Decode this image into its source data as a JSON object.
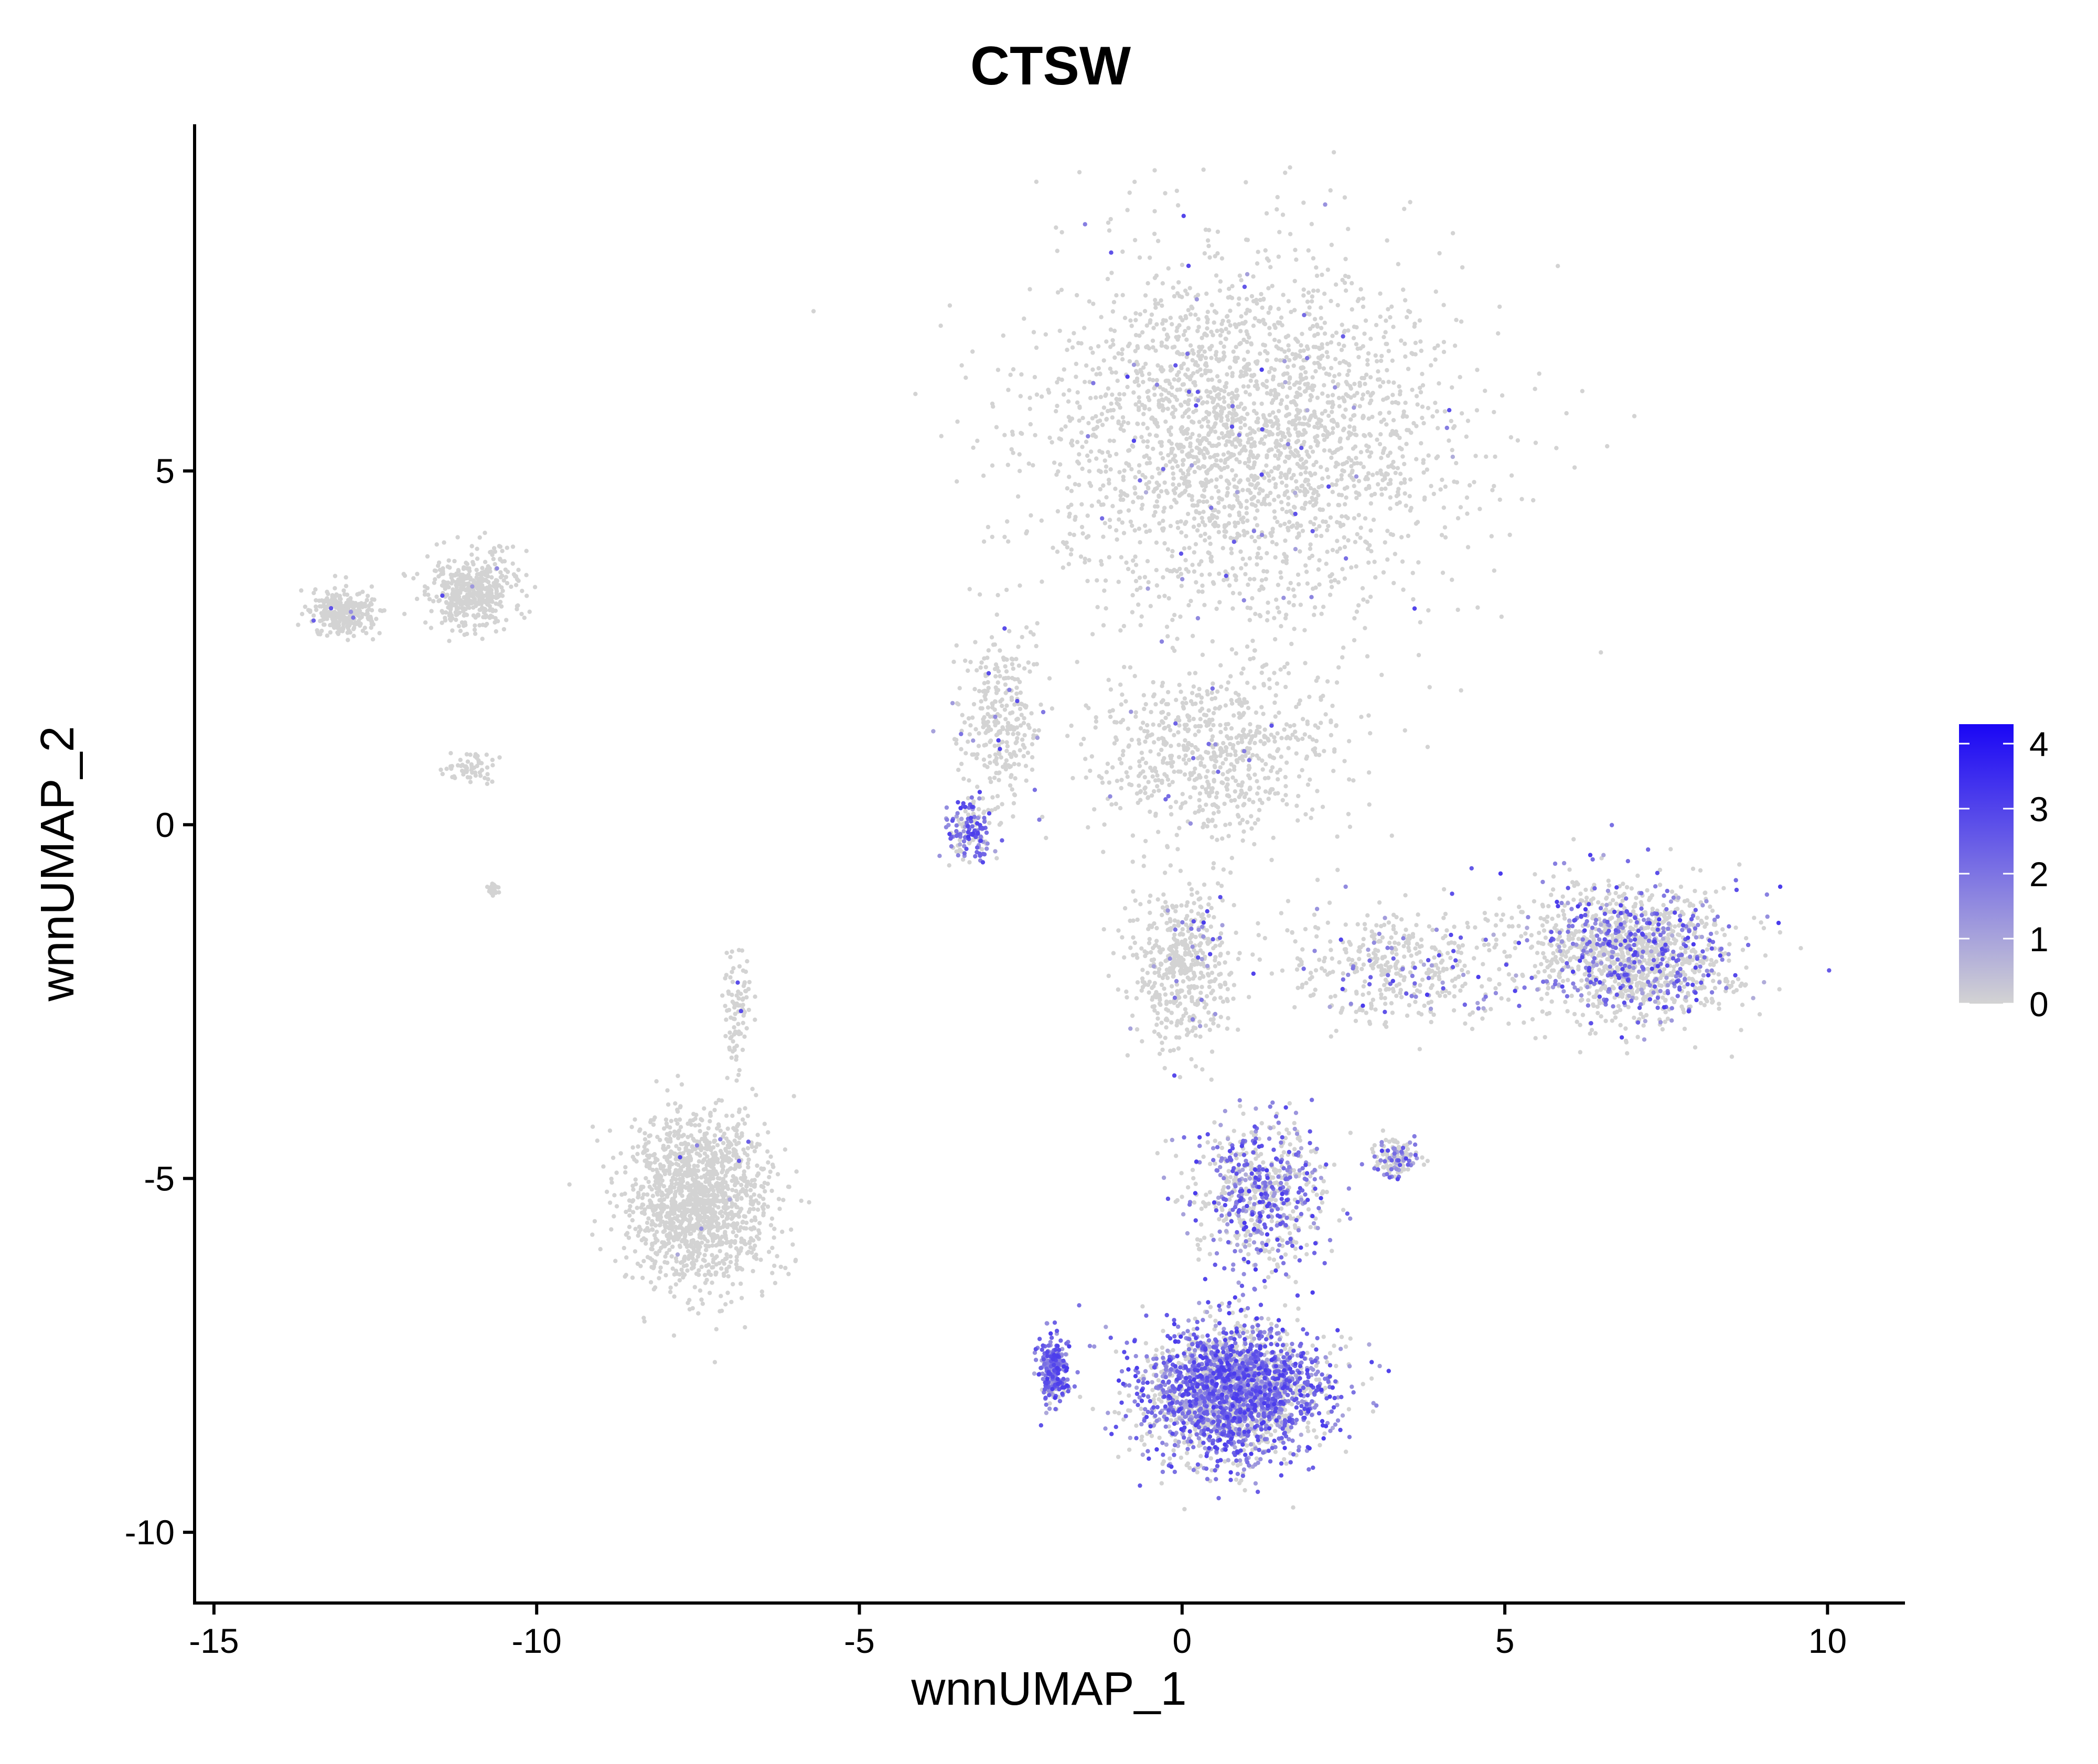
{
  "chart_data": {
    "type": "scatter",
    "title": "CTSW",
    "xlabel": "wnnUMAP_1",
    "ylabel": "wnnUMAP_2",
    "xlim": [
      -15.3,
      11.2
    ],
    "ylim": [
      -11.0,
      9.9
    ],
    "x_ticks": [
      -15,
      -10,
      -5,
      0,
      5,
      10
    ],
    "x_tick_labels": [
      "-15",
      "-10",
      "-5",
      "0",
      "5",
      "10"
    ],
    "y_ticks": [
      -10,
      -5,
      0,
      5
    ],
    "y_tick_labels": [
      "-10",
      "-5",
      "0",
      "5"
    ],
    "grid": false,
    "legend": {
      "position": "right",
      "type": "color-gradient",
      "min": 0,
      "max": 4.3,
      "ticks": [
        0,
        1,
        2,
        3,
        4
      ],
      "tick_labels": [
        "0",
        "1",
        "2",
        "3",
        "4"
      ],
      "low_color": "#d3d3d3",
      "high_color": "#1a06f5"
    },
    "color_low": "#d3d3d3",
    "color_high": "#1a06f5",
    "clusters": [
      {
        "label": "top",
        "cx": 1.0,
        "cy": 5.5,
        "sx": 3.2,
        "sy": 2.5,
        "n": 2600,
        "expr_prob": 0.03
      },
      {
        "label": "top-left-arm",
        "cx": -2.8,
        "cy": 1.5,
        "sx": 0.6,
        "sy": 1.2,
        "n": 300,
        "expr_prob": 0.05
      },
      {
        "label": "top-left-arm-lower",
        "cx": -3.3,
        "cy": -0.1,
        "sx": 0.35,
        "sy": 0.45,
        "n": 160,
        "expr_prob": 0.55
      },
      {
        "label": "middle-loop",
        "cx": 0.5,
        "cy": 1.0,
        "sx": 2.0,
        "sy": 1.2,
        "n": 700,
        "expr_prob": 0.02
      },
      {
        "label": "stem",
        "cx": 0.0,
        "cy": -2.0,
        "sx": 0.8,
        "sy": 1.2,
        "n": 500,
        "expr_prob": 0.06
      },
      {
        "label": "right-arm",
        "cx": 3.5,
        "cy": -2.0,
        "sx": 2.0,
        "sy": 0.8,
        "n": 450,
        "expr_prob": 0.12
      },
      {
        "label": "right-cluster",
        "cx": 7.0,
        "cy": -1.8,
        "sx": 1.6,
        "sy": 0.95,
        "n": 1400,
        "expr_prob": 0.3
      },
      {
        "label": "small-right",
        "cx": 3.3,
        "cy": -4.7,
        "sx": 0.35,
        "sy": 0.25,
        "n": 140,
        "expr_prob": 0.35
      },
      {
        "label": "bottom-stem",
        "cx": 1.2,
        "cy": -5.2,
        "sx": 1.0,
        "sy": 1.1,
        "n": 700,
        "expr_prob": 0.45
      },
      {
        "label": "bottom",
        "cx": 0.8,
        "cy": -8.0,
        "sx": 1.4,
        "sy": 0.9,
        "n": 2600,
        "expr_prob": 0.62
      },
      {
        "label": "bottom-left-edge",
        "cx": -2.0,
        "cy": -7.7,
        "sx": 0.25,
        "sy": 0.45,
        "n": 250,
        "expr_prob": 0.9
      },
      {
        "label": "lower-left",
        "cx": -7.5,
        "cy": -5.3,
        "sx": 1.1,
        "sy": 1.2,
        "n": 1500,
        "expr_prob": 0.005
      },
      {
        "label": "lower-left-spike",
        "cx": -6.9,
        "cy": -2.6,
        "sx": 0.2,
        "sy": 0.8,
        "n": 90,
        "expr_prob": 0.02
      },
      {
        "label": "top-left",
        "cx": -11.0,
        "cy": 3.3,
        "sx": 0.7,
        "sy": 0.55,
        "n": 450,
        "expr_prob": 0.01
      },
      {
        "label": "top-left-strip",
        "cx": -13.0,
        "cy": 3.0,
        "sx": 0.5,
        "sy": 0.3,
        "n": 300,
        "expr_prob": 0.01
      },
      {
        "label": "tiny-1",
        "cx": -11.0,
        "cy": 0.8,
        "sx": 0.5,
        "sy": 0.25,
        "n": 60,
        "expr_prob": 0.0
      },
      {
        "label": "tiny-2",
        "cx": -10.7,
        "cy": -0.9,
        "sx": 0.1,
        "sy": 0.1,
        "n": 25,
        "expr_prob": 0.0
      }
    ]
  }
}
